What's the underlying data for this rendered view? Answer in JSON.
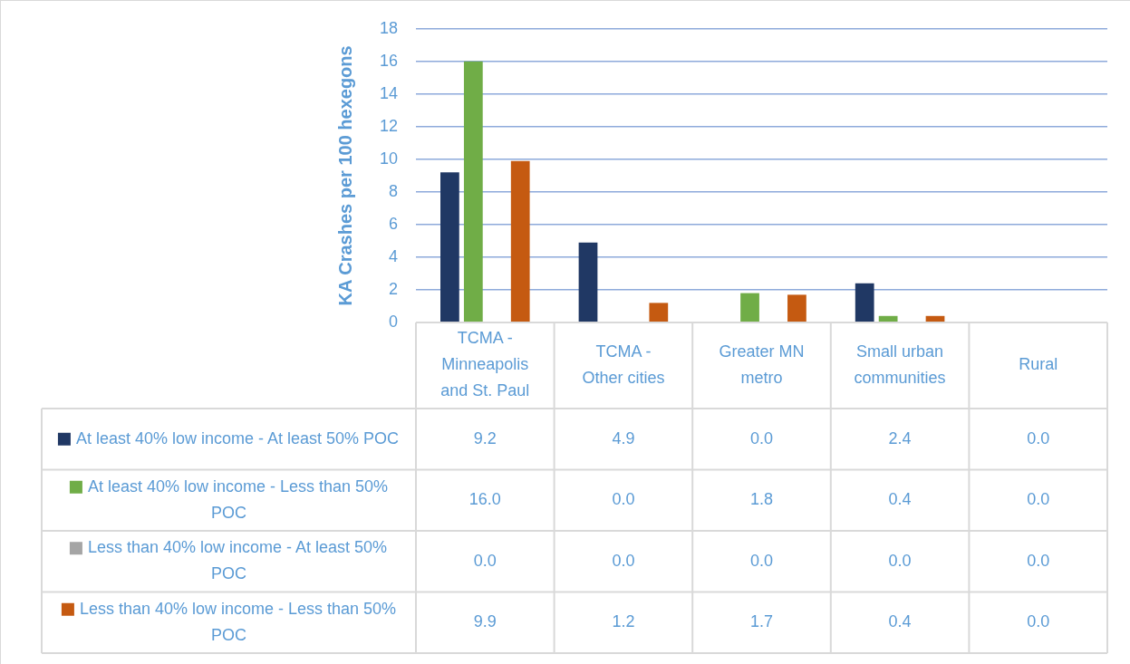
{
  "chart_data": {
    "type": "bar",
    "ylabel": "KA Crashes per 100 hexegons",
    "categories": [
      "TCMA - Minneapolis and St. Paul",
      "TCMA - Other cities",
      "Greater MN metro",
      "Small urban communities",
      "Rural"
    ],
    "series": [
      {
        "name": "At least 40% low income - At least 50% POC",
        "color": "#203864",
        "values": [
          9.2,
          4.9,
          0.0,
          2.4,
          0.0
        ],
        "value_labels": [
          "9.2",
          "4.9",
          "0.0",
          "2.4",
          "0.0"
        ]
      },
      {
        "name": "At least 40% low income - Less than 50% POC",
        "color": "#70ad47",
        "values": [
          16.0,
          0.0,
          1.8,
          0.4,
          0.0
        ],
        "value_labels": [
          "16.0",
          "0.0",
          "1.8",
          "0.4",
          "0.0"
        ]
      },
      {
        "name": "Less than 40% low income - At least 50% POC",
        "color": "#a5a5a5",
        "values": [
          0.0,
          0.0,
          0.0,
          0.0,
          0.0
        ],
        "value_labels": [
          "0.0",
          "0.0",
          "0.0",
          "0.0",
          "0.0"
        ]
      },
      {
        "name": "Less than 40% low income - Less than 50% POC",
        "color": "#c55a11",
        "values": [
          9.9,
          1.2,
          1.7,
          0.4,
          0.0
        ],
        "value_labels": [
          "9.9",
          "1.2",
          "1.7",
          "0.4",
          "0.0"
        ]
      }
    ],
    "ylim": [
      0,
      18
    ],
    "yticks": [
      0,
      2,
      4,
      6,
      8,
      10,
      12,
      14,
      16,
      18
    ],
    "grid": "y",
    "legend": "bottom"
  }
}
